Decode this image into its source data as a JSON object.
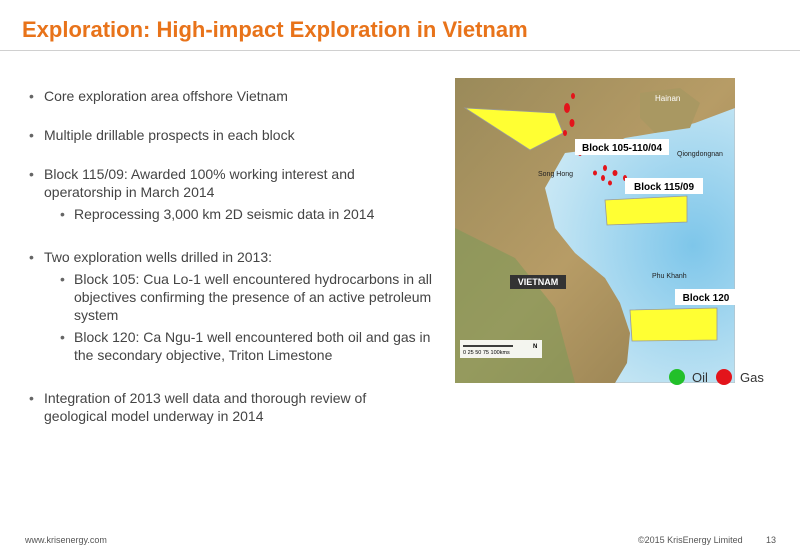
{
  "header": {
    "title": "Exploration: High-impact Exploration in Vietnam"
  },
  "bullets": [
    {
      "text": "Core exploration area offshore Vietnam"
    },
    {
      "text": "Multiple drillable prospects in each block"
    },
    {
      "text": "Block 115/09: Awarded 100% working interest and operatorship in March 2014",
      "sub": [
        "Reprocessing 3,000 km 2D seismic data in 2014"
      ]
    },
    {
      "text": "Two exploration wells drilled in 2013:",
      "sub": [
        "Block 105: Cua Lo-1 well encountered hydrocarbons in all objectives confirming the presence of an active petroleum system",
        "Block 120: Ca Ngu-1 well encountered both oil and gas in the secondary objective, Triton Limestone"
      ]
    },
    {
      "text": "Integration of 2013 well data and thorough review of geological model underway in 2014"
    }
  ],
  "map": {
    "labels": {
      "hainan": "Hainan",
      "qiongdongnan": "Qiongdongnan",
      "song_hong": "Song Hong",
      "phu_khanh": "Phu Khanh",
      "country": "VIETNAM",
      "scale": "0  25  50  75  100kms",
      "north": "N"
    },
    "blocks": [
      "Block 105-110/04",
      "Block 115/09",
      "Block 120"
    ]
  },
  "legend": [
    "Oil",
    "Gas"
  ],
  "footer": {
    "website": "www.krisenergy.com",
    "copyright": "©2015 KrisEnergy Limited",
    "page": "13"
  }
}
